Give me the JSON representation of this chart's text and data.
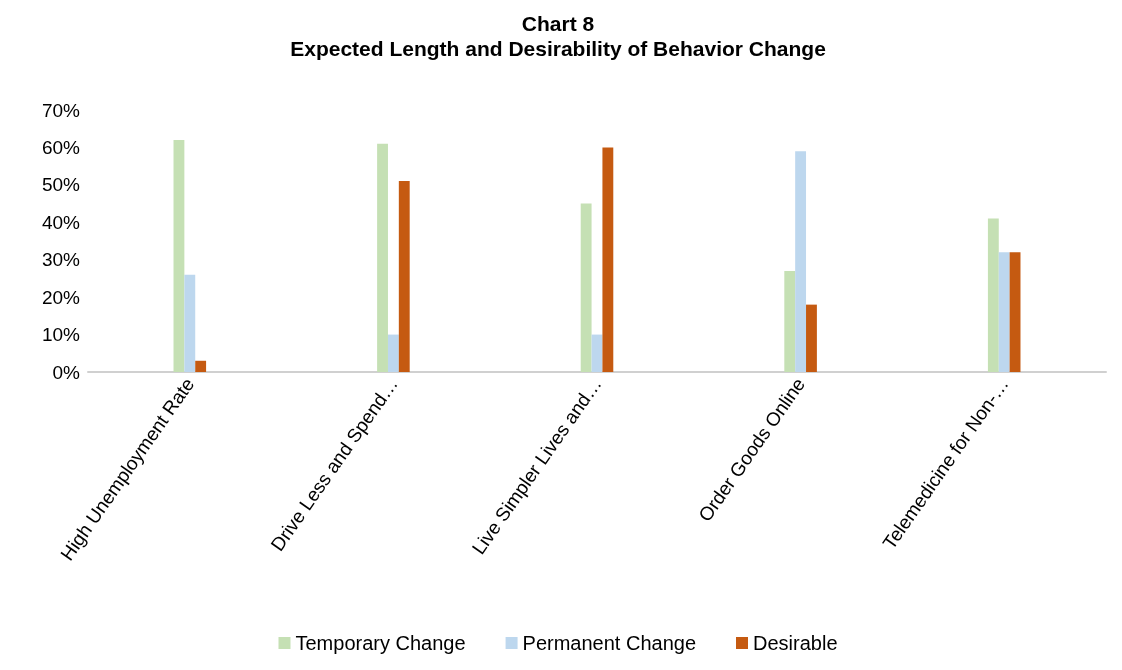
{
  "chart_data": {
    "type": "bar",
    "title": "Chart 8",
    "subtitle": "Expected Length and Desirability of Behavior Change",
    "categories": [
      "High Unemployment Rate",
      "Drive Less and Spend…",
      "Live Simpler Lives and…",
      "Order Goods Online",
      "Telemedicine for Non-…"
    ],
    "series": [
      {
        "name": "Temporary Change",
        "color": "#c5e0b4",
        "values": [
          62,
          61,
          45,
          27,
          41
        ]
      },
      {
        "name": "Permanent Change",
        "color": "#bdd7ee",
        "values": [
          26,
          10,
          10,
          59,
          32
        ]
      },
      {
        "name": "Desirable",
        "color": "#c55a11",
        "values": [
          3,
          51,
          60,
          18,
          32
        ]
      }
    ],
    "ylim": [
      0,
      70
    ],
    "yticks": [
      {
        "value": 0,
        "label": "0%"
      },
      {
        "value": 10,
        "label": "10%"
      },
      {
        "value": 20,
        "label": "20%"
      },
      {
        "value": 30,
        "label": "30%"
      },
      {
        "value": 40,
        "label": "40%"
      },
      {
        "value": 50,
        "label": "50%"
      },
      {
        "value": 60,
        "label": "60%"
      },
      {
        "value": 70,
        "label": "70%"
      }
    ],
    "grid": false,
    "legend": "bottom"
  }
}
